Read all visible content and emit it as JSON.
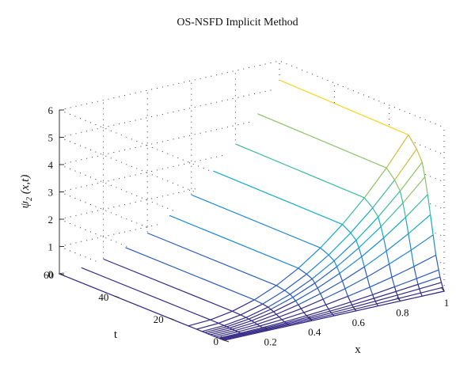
{
  "chart_data": {
    "type": "surface",
    "title": "OS-NSFD Implicit Method",
    "xlabel": "x",
    "ylabel": "t",
    "zlabel": "ψ₂ (x,t)",
    "xlim": [
      0,
      1
    ],
    "tlim": [
      0,
      60
    ],
    "zlim": [
      0,
      6
    ],
    "x_ticks": [
      "0",
      "0.2",
      "0.4",
      "0.6",
      "0.8",
      "1"
    ],
    "t_ticks": [
      "0",
      "20",
      "40",
      "60"
    ],
    "z_ticks": [
      "0",
      "1",
      "2",
      "3",
      "4",
      "5",
      "6"
    ],
    "grid": true,
    "colormap": [
      "#352a87",
      "#2c5bbd",
      "#1f88d2",
      "#12aac4",
      "#3dbb9a",
      "#8cc267",
      "#cfbb3d",
      "#f8d51e"
    ],
    "surface_color": "#35308f",
    "x": [
      0,
      0.1,
      0.2,
      0.3,
      0.4,
      0.5,
      0.6,
      0.7,
      0.8,
      0.9,
      1.0
    ],
    "t": [
      0,
      0.5,
      1,
      1.5,
      2,
      3,
      4,
      5,
      6,
      7,
      8,
      10,
      13,
      60
    ],
    "psi2_at_x1": [
      0.0,
      0.12,
      0.28,
      0.46,
      0.7,
      1.2,
      1.9,
      2.6,
      3.3,
      3.9,
      4.4,
      4.8,
      5.2,
      5.3
    ]
  }
}
